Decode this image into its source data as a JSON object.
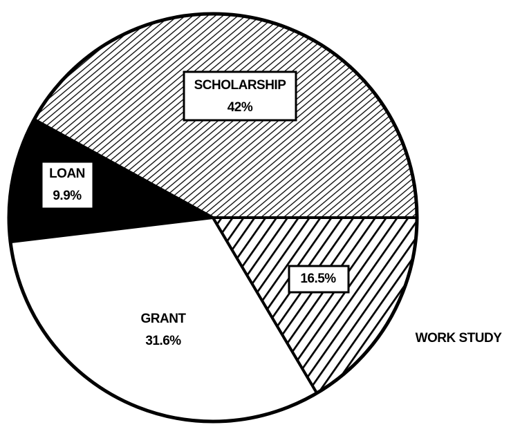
{
  "chart_data": {
    "type": "pie",
    "categories": [
      "SCHOLARSHIP",
      "LOAN",
      "GRANT",
      "WORK STUDY"
    ],
    "values": [
      42,
      9.9,
      31.6,
      16.5
    ],
    "value_labels": [
      "42%",
      "9.9%",
      "31.6%",
      "16.5%"
    ]
  }
}
